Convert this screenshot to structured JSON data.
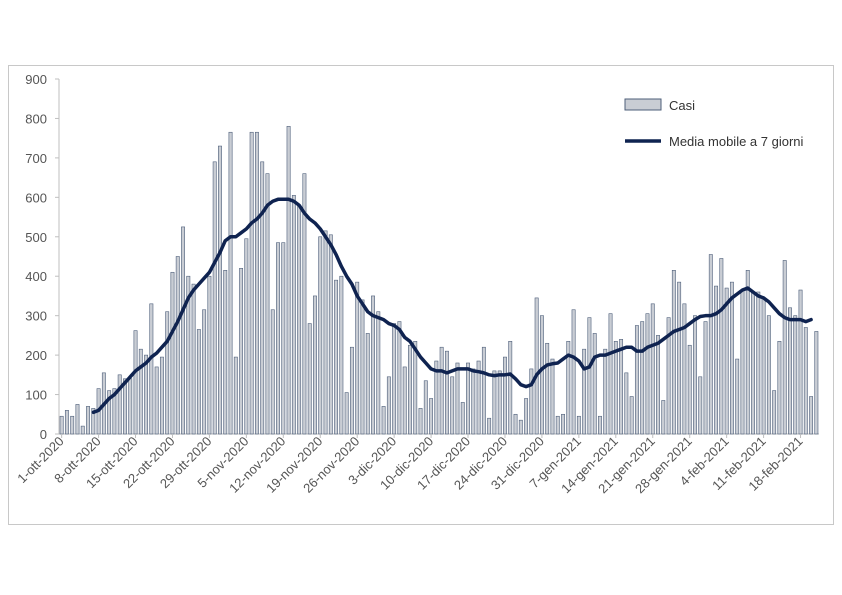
{
  "chart_data": {
    "type": "bar",
    "title": "",
    "xlabel": "",
    "ylabel": "",
    "ylim": [
      0,
      900
    ],
    "yticks": [
      0,
      100,
      200,
      300,
      400,
      500,
      600,
      700,
      800,
      900
    ],
    "grid": false,
    "legend_position": "top-right",
    "x_tick_labels": [
      "1-ott-2020",
      "8-ott-2020",
      "15-ott-2020",
      "22-ott-2020",
      "29-ott-2020",
      "5-nov-2020",
      "12-nov-2020",
      "19-nov-2020",
      "26-nov-2020",
      "3-dic-2020",
      "10-dic-2020",
      "17-dic-2020",
      "24-dic-2020",
      "31-dic-2020",
      "7-gen-2021",
      "14-gen-2021",
      "21-gen-2021",
      "28-gen-2021",
      "4-feb-2021",
      "11-feb-2021",
      "18-feb-2021"
    ],
    "series": [
      {
        "name": "Casi",
        "type": "bar",
        "color": "#c9cdd4",
        "stroke": "#4e5f7a",
        "values": [
          45,
          60,
          45,
          75,
          20,
          70,
          65,
          115,
          155,
          110,
          115,
          150,
          140,
          140,
          262,
          215,
          200,
          330,
          170,
          195,
          310,
          410,
          450,
          525,
          400,
          380,
          265,
          315,
          400,
          690,
          730,
          415,
          765,
          195,
          420,
          495,
          765,
          765,
          690,
          660,
          315,
          485,
          485,
          780,
          605,
          580,
          660,
          280,
          350,
          500,
          515,
          505,
          390,
          400,
          105,
          220,
          385,
          340,
          255,
          350,
          310,
          70,
          145,
          280,
          285,
          170,
          225,
          235,
          65,
          135,
          90,
          185,
          220,
          210,
          145,
          180,
          80,
          180,
          165,
          185,
          220,
          40,
          160,
          160,
          195,
          235,
          50,
          35,
          90,
          165,
          345,
          300,
          230,
          190,
          45,
          50,
          235,
          315,
          45,
          215,
          295,
          255,
          45,
          215,
          305,
          235,
          240,
          155,
          95,
          275,
          285,
          305,
          330,
          250,
          85,
          295,
          415,
          385,
          330,
          225,
          300,
          145,
          285,
          455,
          375,
          445,
          370,
          385,
          190,
          365,
          415,
          360,
          360,
          345,
          300,
          110,
          235,
          440,
          320,
          300,
          365,
          270,
          95,
          260
        ]
      },
      {
        "name": "Media mobile a 7 giorni",
        "type": "line",
        "color": "#0f2350",
        "values": [
          null,
          null,
          null,
          null,
          null,
          null,
          55,
          60,
          75,
          90,
          100,
          115,
          130,
          145,
          160,
          170,
          180,
          195,
          205,
          220,
          235,
          260,
          285,
          315,
          345,
          365,
          380,
          395,
          410,
          435,
          460,
          490,
          500,
          500,
          510,
          520,
          535,
          545,
          560,
          580,
          590,
          595,
          595,
          595,
          590,
          580,
          560,
          545,
          535,
          520,
          500,
          480,
          455,
          425,
          400,
          380,
          350,
          330,
          310,
          300,
          295,
          290,
          280,
          275,
          265,
          245,
          235,
          215,
          195,
          180,
          165,
          160,
          160,
          155,
          160,
          165,
          165,
          165,
          160,
          158,
          155,
          150,
          148,
          150,
          150,
          152,
          140,
          125,
          120,
          125,
          150,
          165,
          175,
          178,
          180,
          190,
          200,
          195,
          185,
          165,
          170,
          195,
          200,
          200,
          205,
          210,
          215,
          220,
          220,
          210,
          210,
          220,
          225,
          230,
          240,
          250,
          260,
          265,
          270,
          280,
          290,
          298,
          300,
          300,
          305,
          315,
          330,
          345,
          355,
          365,
          370,
          360,
          350,
          345,
          335,
          320,
          305,
          295,
          290,
          290,
          290,
          285,
          290
        ]
      }
    ]
  }
}
